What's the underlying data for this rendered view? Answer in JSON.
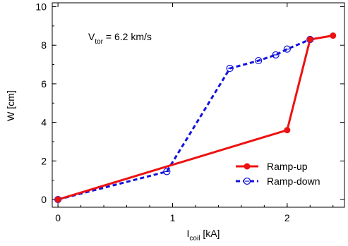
{
  "chart_data": {
    "type": "line",
    "xlabel": {
      "main": "I",
      "sub": "coil",
      "rest": " [kA]"
    },
    "ylabel": "W [cm]",
    "annotation": {
      "main": "V",
      "sub": "tor",
      "rest": " = 6.2 km/s"
    },
    "xlim": [
      -0.05,
      2.5
    ],
    "ylim": [
      -0.4,
      10.2
    ],
    "x_ticks": [
      0,
      1,
      2
    ],
    "x_tick_labels": [
      "0",
      "1",
      "2"
    ],
    "y_ticks": [
      0,
      2,
      4,
      6,
      8,
      10
    ],
    "y_tick_labels": [
      "0",
      "2",
      "4",
      "6",
      "8",
      "10"
    ],
    "legend_position": "lower-right",
    "series": [
      {
        "name": "Ramp-up",
        "color": "#ee1111",
        "style": "solid",
        "marker": "filled-circle",
        "x": [
          0,
          2.0,
          2.2,
          2.4
        ],
        "y": [
          0,
          3.6,
          8.3,
          8.5
        ]
      },
      {
        "name": "Ramp-down",
        "color": "#1111dd",
        "style": "dashed",
        "marker": "open-circle-dot",
        "x": [
          0,
          0.95,
          1.5,
          1.75,
          1.9,
          2.0,
          2.2
        ],
        "y": [
          0,
          1.45,
          6.8,
          7.2,
          7.5,
          7.8,
          8.3
        ]
      }
    ]
  }
}
